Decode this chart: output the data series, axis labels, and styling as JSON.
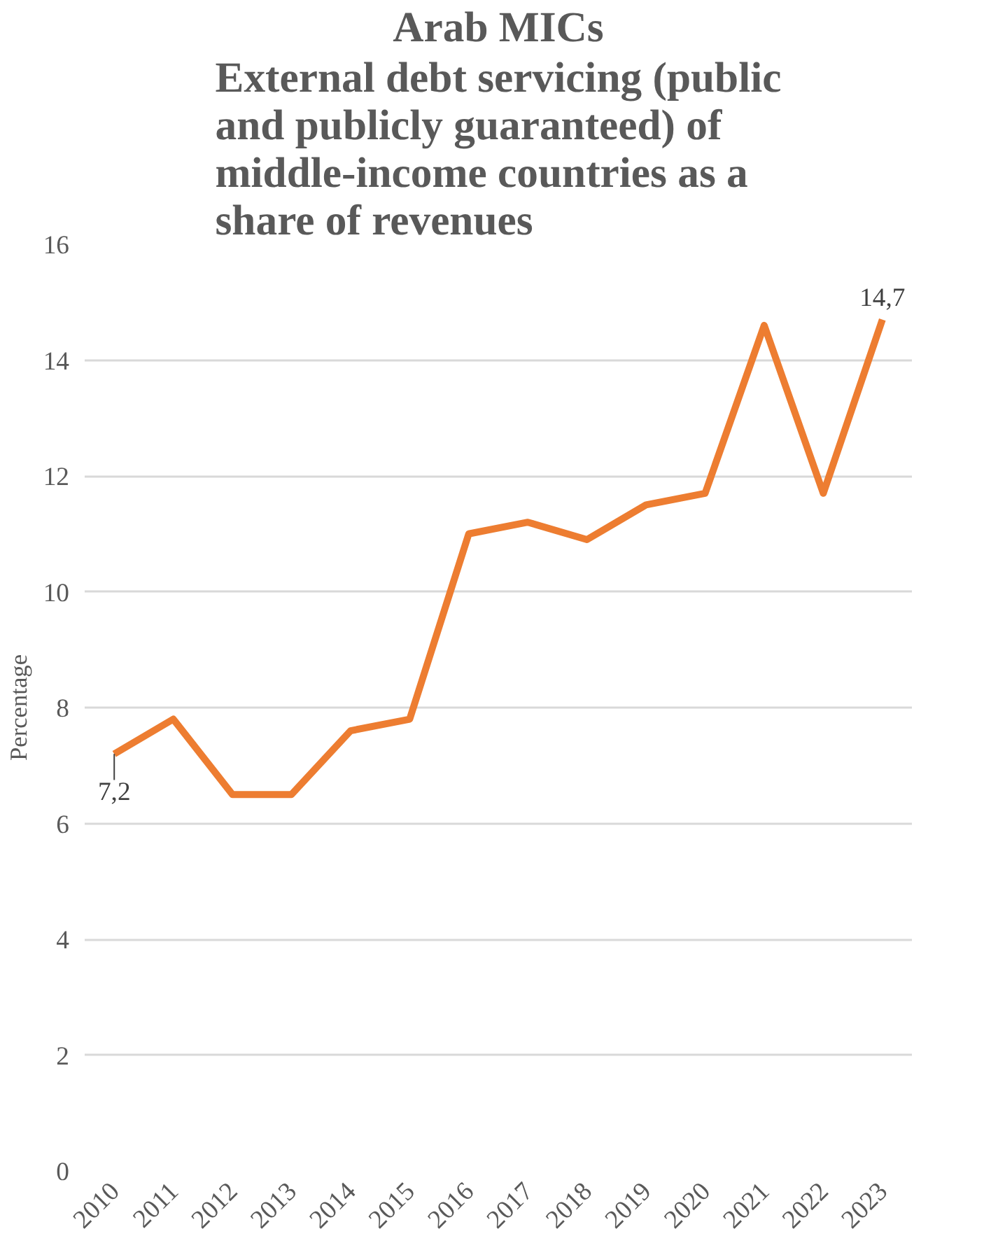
{
  "chart_data": {
    "type": "line",
    "title": "Arab MICs",
    "subtitle": "External debt servicing (public and publicly guaranteed) of middle-income countries as a share of revenues",
    "ylabel": "Percentage",
    "categories": [
      "2010",
      "2011",
      "2012",
      "2013",
      "2014",
      "2015",
      "2016",
      "2017",
      "2018",
      "2019",
      "2020",
      "2021",
      "2022",
      "2023"
    ],
    "series": [
      {
        "color": "#ed7d31",
        "values": [
          7.2,
          7.8,
          6.5,
          6.5,
          7.6,
          7.8,
          11.0,
          11.2,
          10.9,
          11.5,
          11.7,
          14.6,
          11.7,
          14.7
        ],
        "value_labels": [
          "7,2",
          null,
          null,
          null,
          null,
          null,
          null,
          null,
          null,
          null,
          null,
          null,
          null,
          "14,7"
        ]
      }
    ],
    "ylim": [
      0,
      16
    ],
    "yticks": [
      0,
      2,
      4,
      6,
      8,
      10,
      12,
      14,
      16
    ],
    "grid": "y",
    "marker": "none",
    "line_style": "solid"
  }
}
